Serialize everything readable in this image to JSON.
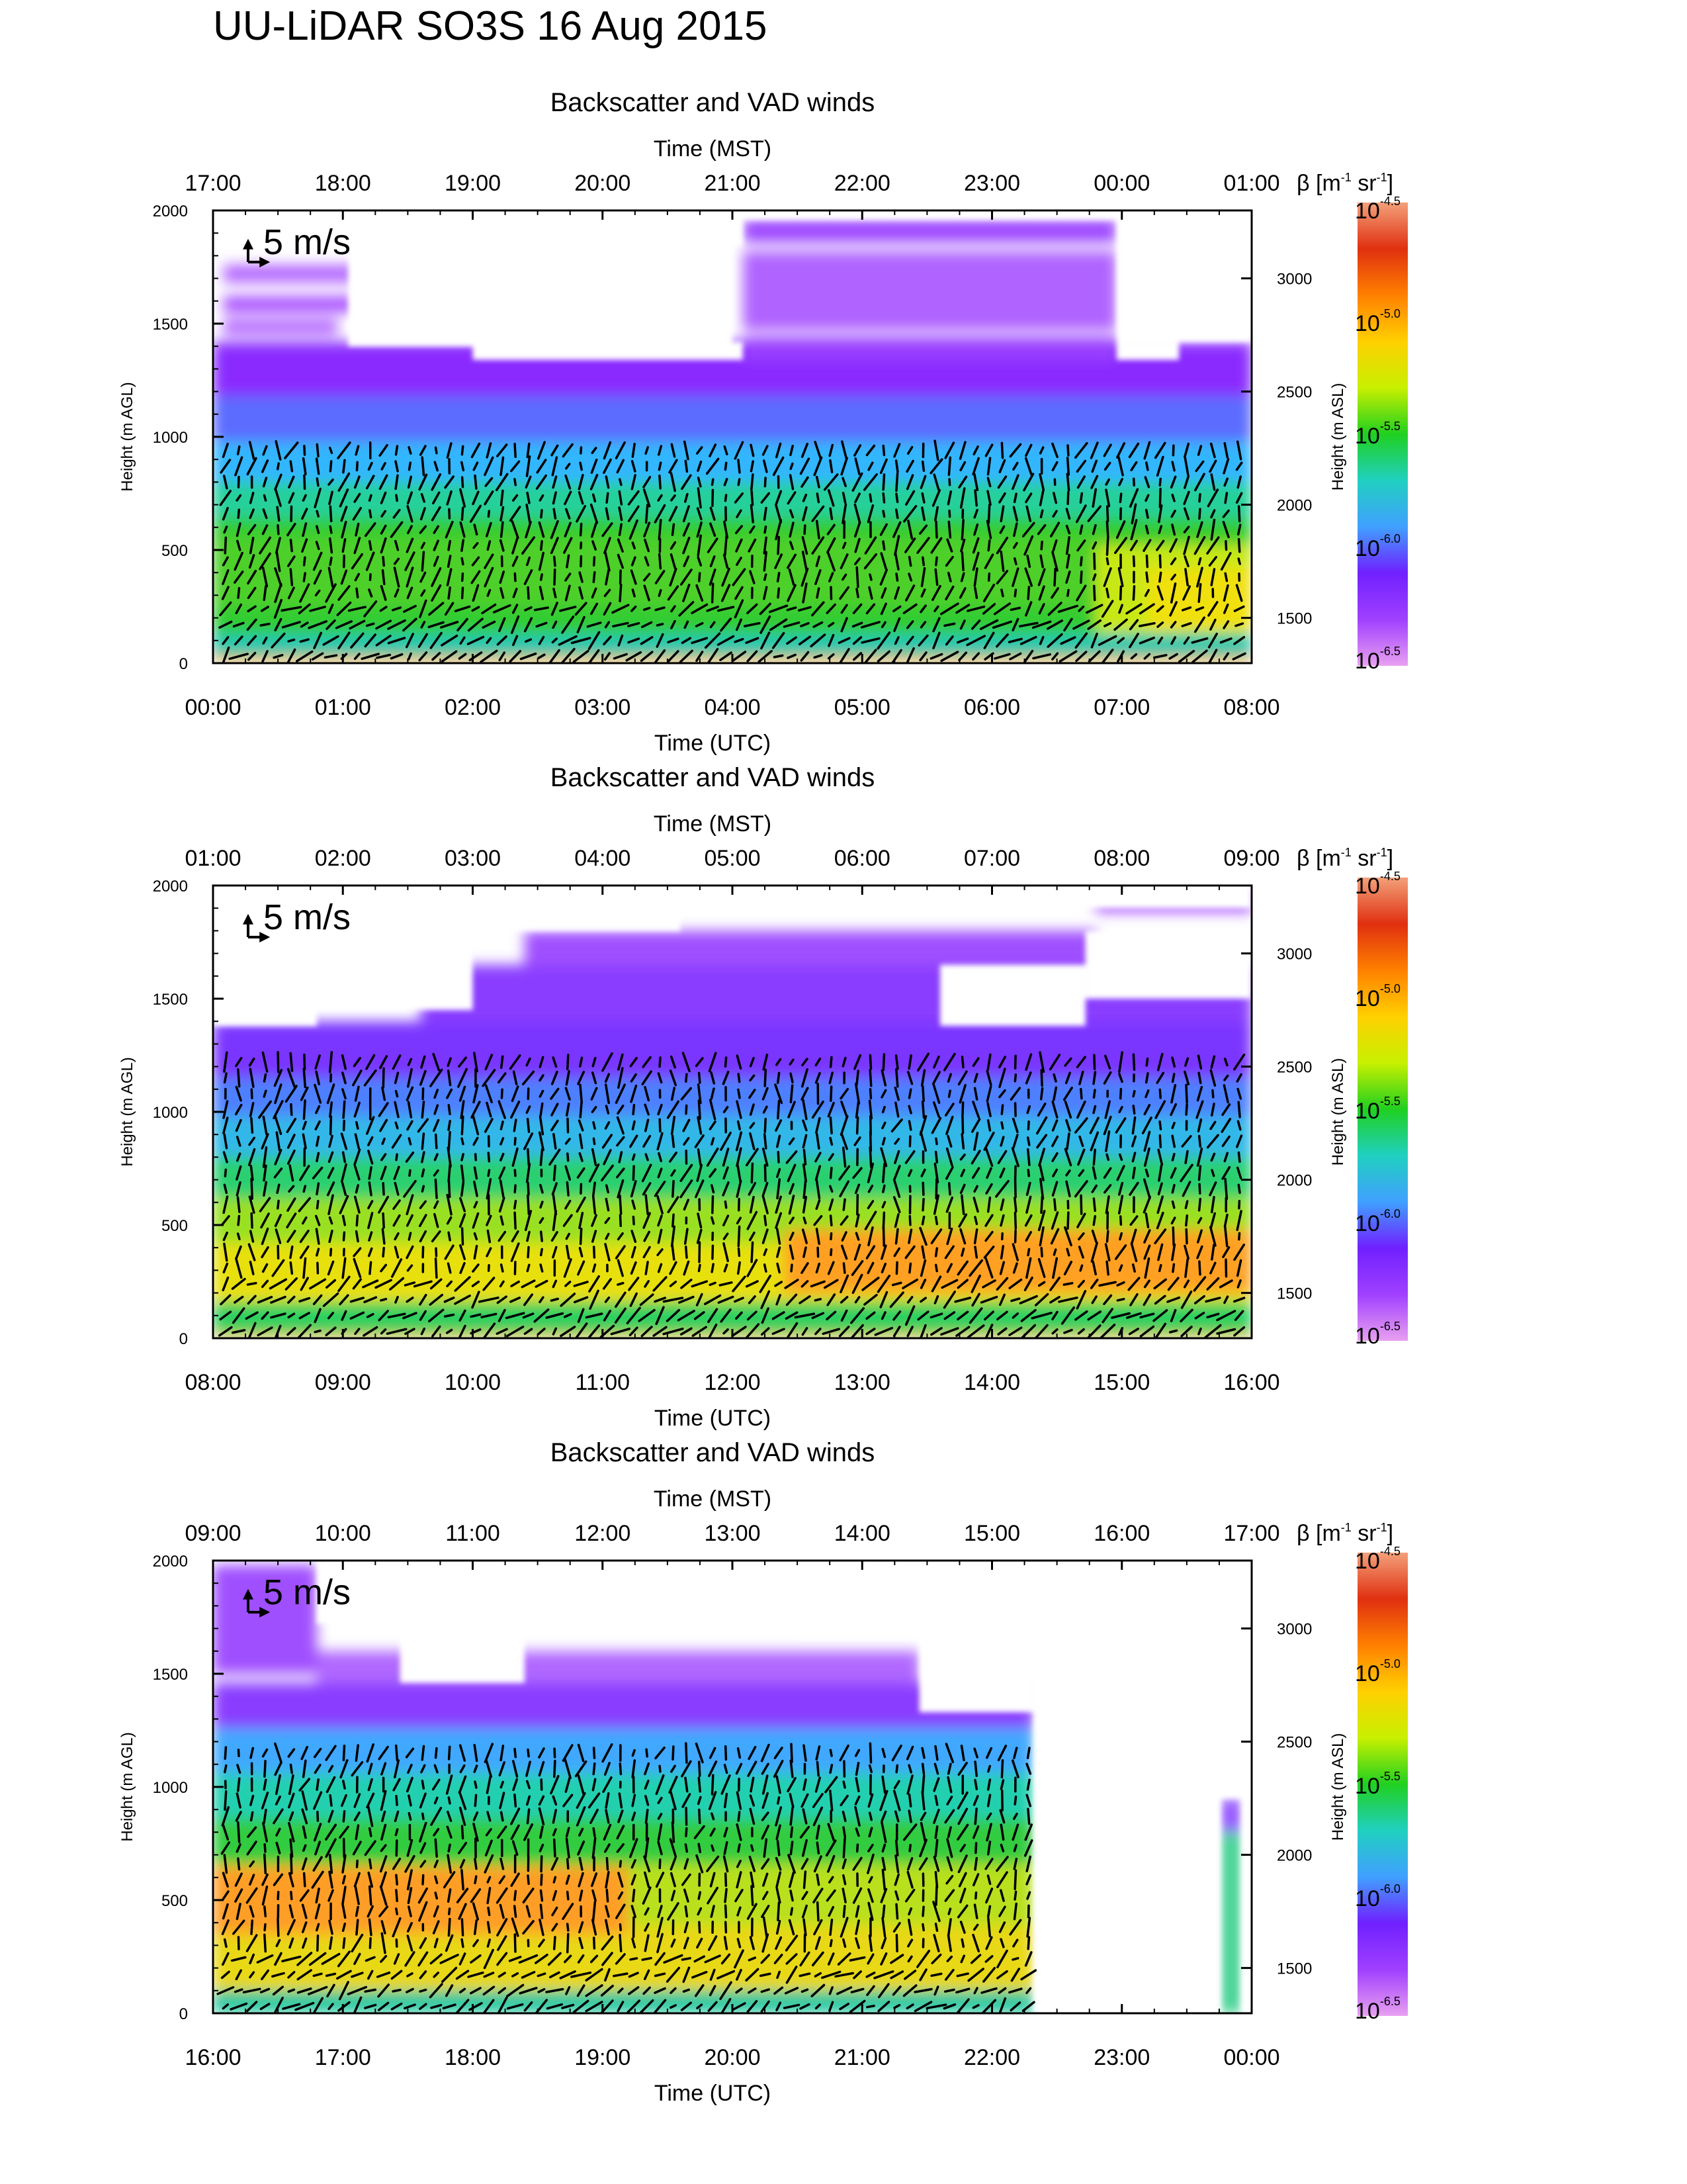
{
  "figure": {
    "title": "UU-LiDAR SO3S 16 Aug 2015"
  },
  "colorbar": {
    "label_symbol": "β [m",
    "label_exp1": "-1",
    "label_mid": " sr",
    "label_exp2": "-1",
    "label_end": "]",
    "base": "10",
    "ticks": [
      "-4.5",
      "-5.0",
      "-5.5",
      "-6.0",
      "-6.5"
    ],
    "colors": [
      "#f3a07a",
      "#e03010",
      "#ff8000",
      "#ffd000",
      "#c8f000",
      "#20d020",
      "#20d0c0",
      "#40a0ff",
      "#7020ff",
      "#a040ff",
      "#e8a0f0"
    ]
  },
  "wind_key": {
    "label": "5 m/s"
  },
  "chart_data": [
    {
      "type": "heatmap",
      "title": "Backscatter and VAD winds",
      "xlabel_top": "Time (MST)",
      "xlabel": "Time (UTC)",
      "ylabel": "Height (m AGL)",
      "ylabel_right": "Height (m ASL)",
      "x_ticks_utc": [
        "00:00",
        "01:00",
        "02:00",
        "03:00",
        "04:00",
        "05:00",
        "06:00",
        "07:00",
        "08:00"
      ],
      "x_ticks_mst": [
        "17:00",
        "18:00",
        "19:00",
        "20:00",
        "21:00",
        "22:00",
        "23:00",
        "00:00",
        "01:00"
      ],
      "y_ticks": [
        "0",
        "500",
        "1000",
        "1500",
        "2000"
      ],
      "y_ticks_right": [
        "1500",
        "2000",
        "2500",
        "3000"
      ],
      "ylim": [
        0,
        2000
      ],
      "ylim_right_asl": [
        1300,
        3300
      ]
    },
    {
      "type": "heatmap",
      "title": "Backscatter and VAD winds",
      "xlabel_top": "Time (MST)",
      "xlabel": "Time (UTC)",
      "ylabel": "Height (m AGL)",
      "ylabel_right": "Height (m ASL)",
      "x_ticks_utc": [
        "08:00",
        "09:00",
        "10:00",
        "11:00",
        "12:00",
        "13:00",
        "14:00",
        "15:00",
        "16:00"
      ],
      "x_ticks_mst": [
        "01:00",
        "02:00",
        "03:00",
        "04:00",
        "05:00",
        "06:00",
        "07:00",
        "08:00",
        "09:00"
      ],
      "y_ticks": [
        "0",
        "500",
        "1000",
        "1500",
        "2000"
      ],
      "y_ticks_right": [
        "1500",
        "2000",
        "2500",
        "3000"
      ],
      "ylim": [
        0,
        2000
      ],
      "ylim_right_asl": [
        1300,
        3300
      ]
    },
    {
      "type": "heatmap",
      "title": "Backscatter and VAD winds",
      "xlabel_top": "Time (MST)",
      "xlabel": "Time (UTC)",
      "ylabel": "Height (m AGL)",
      "ylabel_right": "Height (m ASL)",
      "x_ticks_utc": [
        "16:00",
        "17:00",
        "18:00",
        "19:00",
        "20:00",
        "21:00",
        "22:00",
        "23:00",
        "00:00"
      ],
      "x_ticks_mst": [
        "09:00",
        "10:00",
        "11:00",
        "12:00",
        "13:00",
        "14:00",
        "15:00",
        "16:00",
        "17:00"
      ],
      "y_ticks": [
        "0",
        "500",
        "1000",
        "1500",
        "2000"
      ],
      "y_ticks_right": [
        "1500",
        "2000",
        "2500",
        "3000"
      ],
      "ylim": [
        0,
        2000
      ],
      "ylim_right_asl": [
        1300,
        3300
      ]
    }
  ]
}
